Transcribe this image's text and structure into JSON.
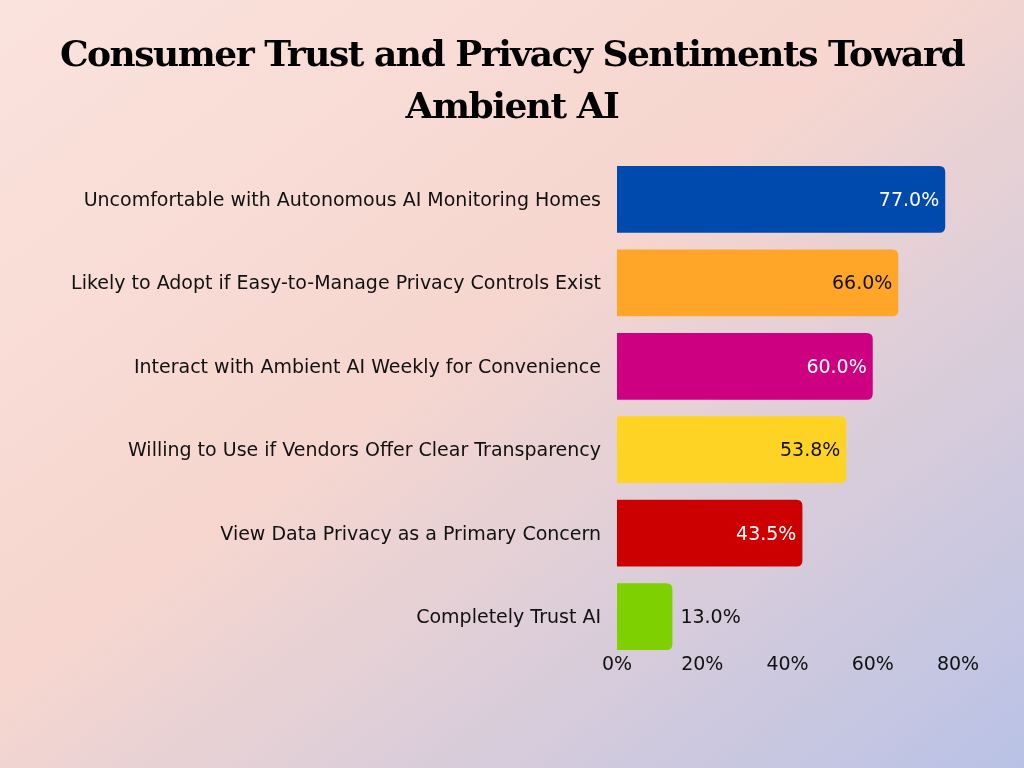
{
  "chart_data": {
    "type": "bar",
    "orientation": "horizontal",
    "title": "Consumer Trust and Privacy Sentiments Toward Ambient AI",
    "categories": [
      "Uncomfortable with Autonomous AI Monitoring Homes",
      "Likely to Adopt if Easy-to-Manage Privacy Controls Exist",
      "Interact with Ambient AI Weekly for Convenience",
      "Willing to Use if Vendors Offer Clear Transparency",
      "View Data Privacy as a Primary Concern",
      "Completely Trust AI"
    ],
    "values": [
      77.0,
      66.0,
      60.0,
      53.8,
      43.5,
      13.0
    ],
    "colors": [
      "#004aad",
      "#ffa629",
      "#cc0080",
      "#ffd324",
      "#cc0000",
      "#7ed000"
    ],
    "value_labels": [
      "77.0%",
      "66.0%",
      "60.0%",
      "53.8%",
      "43.5%",
      "13.0%"
    ],
    "xlim": [
      0,
      80
    ],
    "xticks": [
      {
        "value": 0,
        "label": "0%"
      },
      {
        "value": 20,
        "label": "20%"
      },
      {
        "value": 40,
        "label": "40%"
      },
      {
        "value": 60,
        "label": "60%"
      },
      {
        "value": 80,
        "label": "80%"
      }
    ],
    "grid": false
  }
}
